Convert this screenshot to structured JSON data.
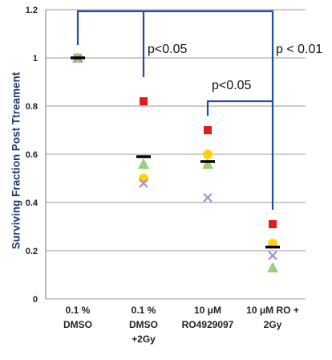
{
  "chart_data": {
    "type": "scatter",
    "ylabel": "Surviving Fraction Post Ttreament",
    "ylim": [
      0,
      1.2
    ],
    "yticks": [
      "0",
      "0.2",
      "0.4",
      "0.6",
      "0.8",
      "1",
      "1.2"
    ],
    "grid": true,
    "categories": [
      [
        "0.1 %",
        "DMSO"
      ],
      [
        "0.1 %",
        "DMSO",
        "+2Gy"
      ],
      [
        "10 μM",
        "RO4929097"
      ],
      [
        "10 μM RO +",
        "2Gy"
      ]
    ],
    "series": [
      {
        "marker": "square",
        "color": "#e31a1c",
        "values": [
          1.0,
          0.82,
          0.7,
          0.31
        ]
      },
      {
        "marker": "circle",
        "color": "#ffd400",
        "values": [
          1.0,
          0.5,
          0.6,
          0.23
        ]
      },
      {
        "marker": "triangle",
        "color": "#9bcf7a",
        "values": [
          1.0,
          0.56,
          0.56,
          0.13
        ]
      },
      {
        "marker": "x",
        "color": "#a98ad6",
        "values": [
          1.0,
          0.48,
          0.42,
          0.18
        ]
      },
      {
        "marker": "dash",
        "color": "#000000",
        "values": [
          1.0,
          0.59,
          0.57,
          0.215
        ]
      }
    ],
    "annotations": [
      {
        "text": "p<0.05",
        "from_category": 0,
        "to_category": 1
      },
      {
        "text": "p<0.05",
        "from_category": 2,
        "to_category": 3
      },
      {
        "text": "p < 0.01",
        "from_category": 0,
        "to_category": 3
      }
    ],
    "bracket_color": "#1f4e9c"
  }
}
